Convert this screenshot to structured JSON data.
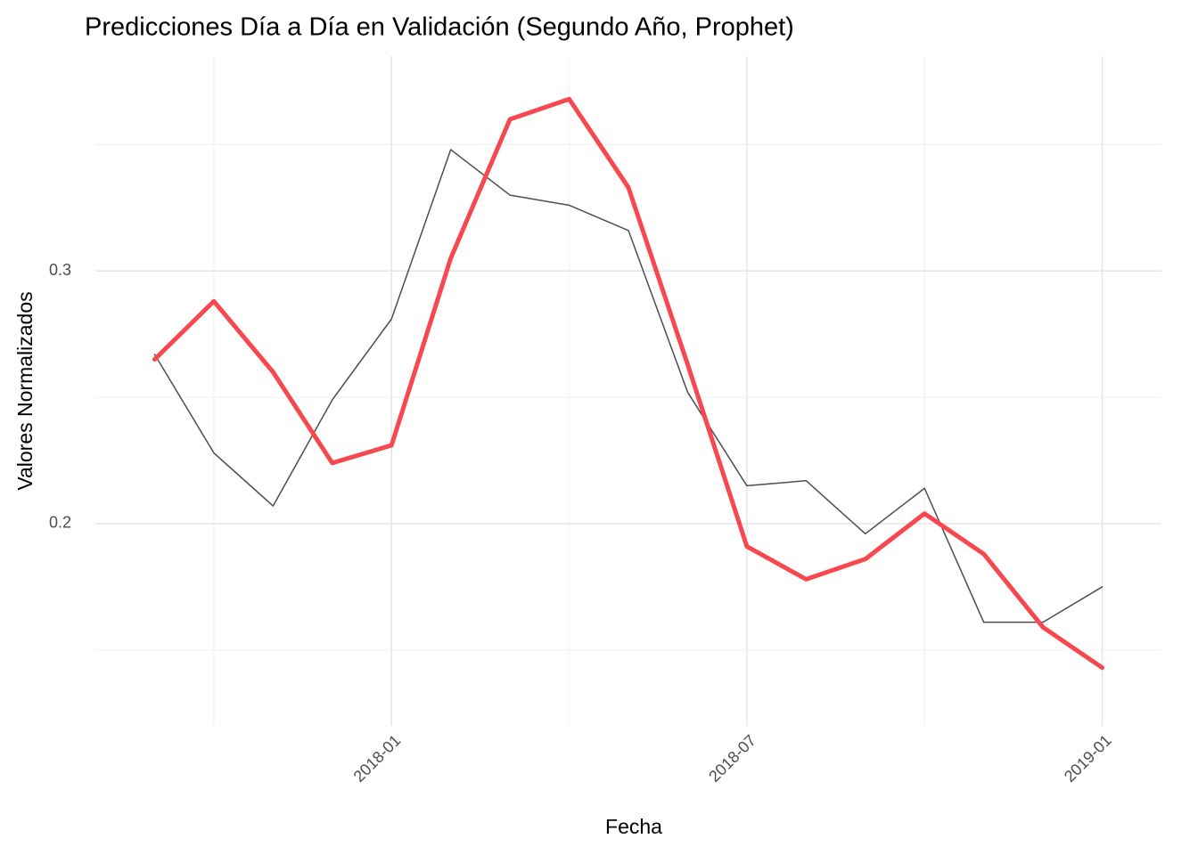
{
  "chart_data": {
    "type": "line",
    "title": "Predicciones Día a Día en Validación (Segundo Año, Prophet)",
    "x_label": "Fecha",
    "y_label": "Valores Normalizados",
    "x": [
      "2017-09",
      "2017-10",
      "2017-11",
      "2017-12",
      "2018-01",
      "2018-02",
      "2018-03",
      "2018-04",
      "2018-05",
      "2018-06",
      "2018-07",
      "2018-08",
      "2018-09",
      "2018-10",
      "2018-11",
      "2018-12",
      "2019-01"
    ],
    "series": [
      {
        "color": "#4d4d4d",
        "width": 1.5,
        "values": [
          0.267,
          0.228,
          0.207,
          0.249,
          0.281,
          0.348,
          0.33,
          0.326,
          0.316,
          0.252,
          0.215,
          0.217,
          0.196,
          0.214,
          0.161,
          0.161,
          0.175
        ]
      },
      {
        "color": "#f8484f",
        "width": 5,
        "values": [
          0.265,
          0.288,
          0.26,
          0.224,
          0.231,
          0.305,
          0.36,
          0.368,
          0.333,
          0.263,
          0.191,
          0.178,
          0.186,
          0.204,
          0.188,
          0.159,
          0.143
        ]
      }
    ],
    "xlim": [
      "2017-08",
      "2019-02"
    ],
    "xticks": [
      "2018-01",
      "2018-07",
      "2019-01"
    ],
    "xminor": [
      "2017-10",
      "2018-04",
      "2018-10"
    ],
    "ylim": [
      0.12,
      0.385
    ],
    "yticks": [
      0.2,
      0.3
    ],
    "yminor": [
      0.15,
      0.25,
      0.35
    ],
    "grid": true
  }
}
